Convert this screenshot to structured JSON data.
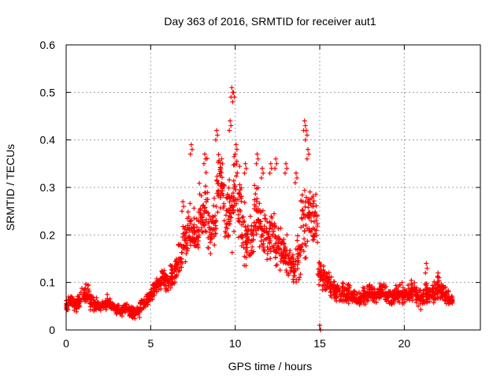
{
  "chart_data": {
    "type": "scatter",
    "title": "Day 363 of 2016, SRMTID for receiver aut1",
    "xlabel": "GPS time / hours",
    "ylabel": "SRMTID / TECUs",
    "xlim": [
      0,
      24.5
    ],
    "ylim": [
      0,
      0.6
    ],
    "xticks": [
      0,
      5,
      10,
      15,
      20
    ],
    "xtick_labels": [
      "0",
      "5",
      "10",
      "15",
      "20"
    ],
    "yticks": [
      0,
      0.1,
      0.2,
      0.3,
      0.4,
      0.5,
      0.6
    ],
    "ytick_labels": [
      "0",
      "0.1",
      "0.2",
      "0.3",
      "0.4",
      "0.5",
      "0.6"
    ],
    "grid": true,
    "marker": "+",
    "color": "#ff0000",
    "series": [
      {
        "name": "aut1",
        "x": [
          0.0,
          0.25,
          0.5,
          0.75,
          1.0,
          1.25,
          1.5,
          1.75,
          2.0,
          2.25,
          2.5,
          2.75,
          3.0,
          3.25,
          3.5,
          3.75,
          4.0,
          4.25,
          4.5,
          4.75,
          5.0,
          5.25,
          5.5,
          5.75,
          6.0,
          6.25,
          6.5,
          6.75,
          7.0,
          7.25,
          7.5,
          7.75,
          8.0,
          8.25,
          8.5,
          8.75,
          9.0,
          9.25,
          9.5,
          9.75,
          10.0,
          10.25,
          10.5,
          10.75,
          11.0,
          11.25,
          11.5,
          11.75,
          12.0,
          12.25,
          12.5,
          12.75,
          13.0,
          13.25,
          13.5,
          13.75,
          14.0,
          14.25,
          14.5,
          14.75,
          15.0,
          15.25,
          15.5,
          15.75,
          16.0,
          16.25,
          16.5,
          16.75,
          17.0,
          17.25,
          17.5,
          17.75,
          18.0,
          18.25,
          18.5,
          18.75,
          19.0,
          19.25,
          19.5,
          19.75,
          20.0,
          20.25,
          20.5,
          20.75,
          21.0,
          21.25,
          21.5,
          21.75,
          22.0,
          22.25,
          22.5,
          22.75
        ],
        "y": [
          0.05,
          0.06,
          0.055,
          0.06,
          0.07,
          0.075,
          0.06,
          0.055,
          0.05,
          0.055,
          0.06,
          0.05,
          0.045,
          0.04,
          0.045,
          0.04,
          0.035,
          0.04,
          0.05,
          0.06,
          0.07,
          0.09,
          0.1,
          0.11,
          0.1,
          0.12,
          0.13,
          0.15,
          0.2,
          0.22,
          0.2,
          0.21,
          0.25,
          0.27,
          0.2,
          0.22,
          0.3,
          0.28,
          0.24,
          0.25,
          0.3,
          0.26,
          0.2,
          0.18,
          0.2,
          0.24,
          0.22,
          0.2,
          0.19,
          0.2,
          0.18,
          0.17,
          0.16,
          0.14,
          0.13,
          0.15,
          0.22,
          0.24,
          0.25,
          0.22,
          0.12,
          0.11,
          0.1,
          0.09,
          0.085,
          0.08,
          0.075,
          0.08,
          0.07,
          0.065,
          0.07,
          0.075,
          0.08,
          0.07,
          0.075,
          0.08,
          0.07,
          0.065,
          0.075,
          0.08,
          0.07,
          0.075,
          0.08,
          0.07,
          0.07,
          0.08,
          0.075,
          0.08,
          0.09,
          0.08,
          0.07,
          0.06
        ],
        "spread": [
          0.02,
          0.02,
          0.02,
          0.02,
          0.025,
          0.025,
          0.02,
          0.02,
          0.015,
          0.015,
          0.02,
          0.015,
          0.015,
          0.015,
          0.015,
          0.015,
          0.015,
          0.015,
          0.02,
          0.02,
          0.02,
          0.025,
          0.03,
          0.03,
          0.03,
          0.035,
          0.04,
          0.05,
          0.07,
          0.08,
          0.07,
          0.07,
          0.1,
          0.1,
          0.07,
          0.08,
          0.1,
          0.1,
          0.09,
          0.1,
          0.12,
          0.1,
          0.08,
          0.07,
          0.07,
          0.09,
          0.08,
          0.07,
          0.06,
          0.07,
          0.06,
          0.06,
          0.06,
          0.05,
          0.05,
          0.06,
          0.1,
          0.12,
          0.1,
          0.08,
          0.04,
          0.04,
          0.03,
          0.03,
          0.03,
          0.03,
          0.025,
          0.03,
          0.025,
          0.025,
          0.025,
          0.025,
          0.03,
          0.025,
          0.025,
          0.03,
          0.025,
          0.025,
          0.025,
          0.03,
          0.025,
          0.025,
          0.03,
          0.025,
          0.03,
          0.035,
          0.03,
          0.03,
          0.035,
          0.03,
          0.025,
          0.02
        ],
        "peaks": [
          [
            6.9,
            0.27
          ],
          [
            7.4,
            0.39
          ],
          [
            8.2,
            0.37
          ],
          [
            8.9,
            0.42
          ],
          [
            9.2,
            0.36
          ],
          [
            9.7,
            0.44
          ],
          [
            9.8,
            0.51
          ],
          [
            9.9,
            0.5
          ],
          [
            10.05,
            0.39
          ],
          [
            10.6,
            0.35
          ],
          [
            11.3,
            0.37
          ],
          [
            11.6,
            0.34
          ],
          [
            12.1,
            0.35
          ],
          [
            12.4,
            0.36
          ],
          [
            13.0,
            0.35
          ],
          [
            13.6,
            0.33
          ],
          [
            14.1,
            0.44
          ],
          [
            14.2,
            0.42
          ],
          [
            14.3,
            0.38
          ],
          [
            15.0,
            0.01
          ],
          [
            21.3,
            0.14
          ],
          [
            22.0,
            0.12
          ]
        ]
      }
    ]
  }
}
